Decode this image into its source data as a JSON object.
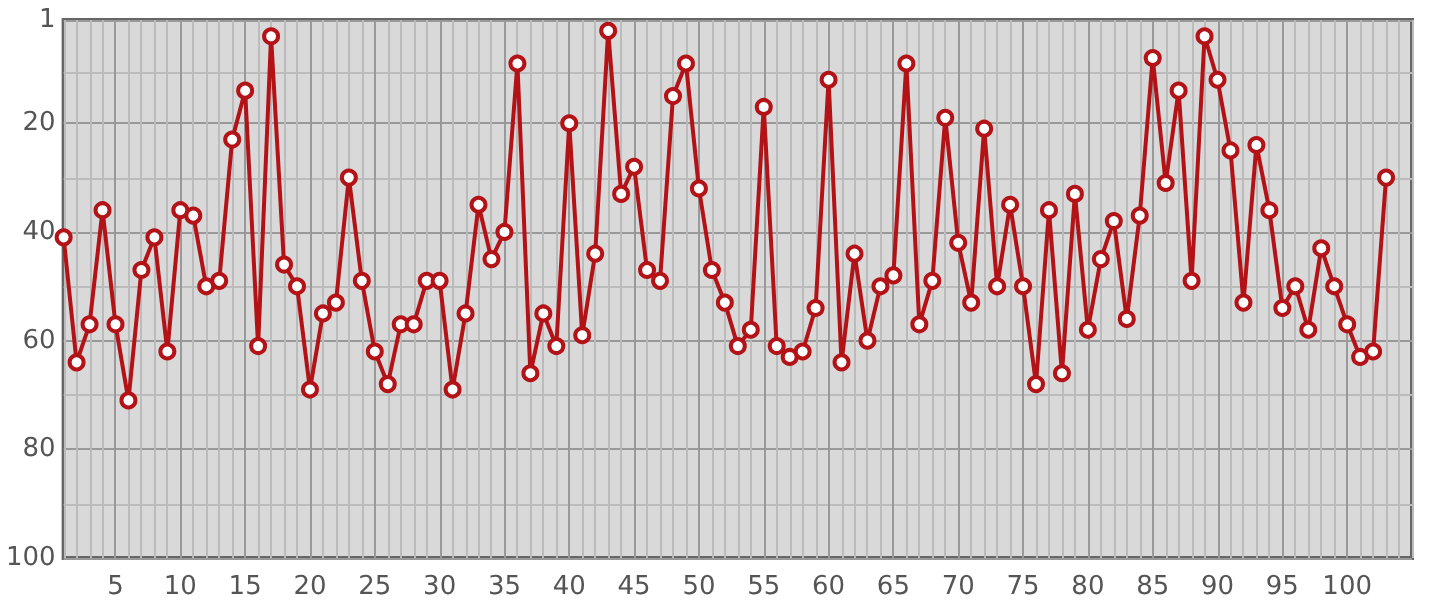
{
  "chart_data": {
    "type": "line",
    "x": [
      1,
      2,
      3,
      4,
      5,
      6,
      7,
      8,
      9,
      10,
      11,
      12,
      13,
      14,
      15,
      16,
      17,
      18,
      19,
      20,
      21,
      22,
      23,
      24,
      25,
      26,
      27,
      28,
      29,
      30,
      31,
      32,
      33,
      34,
      35,
      36,
      37,
      38,
      39,
      40,
      41,
      42,
      43,
      44,
      45,
      46,
      47,
      48,
      49,
      50,
      51,
      52,
      53,
      54,
      55,
      56,
      57,
      58,
      59,
      60,
      61,
      62,
      63,
      64,
      65,
      66,
      67,
      68,
      69,
      70,
      71,
      72,
      73,
      74,
      75,
      76,
      77,
      78,
      79,
      80,
      81,
      82,
      83,
      84,
      85,
      86,
      87,
      88,
      89,
      90,
      91,
      92,
      93,
      94,
      95,
      96,
      97,
      98,
      99,
      100,
      101,
      102,
      103
    ],
    "series": [
      {
        "color": "#b31217",
        "values": [
          41,
          64,
          57,
          36,
          57,
          71,
          47,
          41,
          62,
          36,
          37,
          50,
          49,
          23,
          14,
          61,
          4,
          46,
          50,
          69,
          55,
          53,
          30,
          49,
          62,
          68,
          57,
          57,
          49,
          49,
          69,
          55,
          35,
          45,
          40,
          9,
          66,
          55,
          61,
          20,
          59,
          44,
          3,
          33,
          28,
          47,
          49,
          15,
          9,
          32,
          47,
          53,
          61,
          58,
          17,
          61,
          63,
          62,
          54,
          12,
          64,
          44,
          60,
          50,
          48,
          9,
          57,
          49,
          19,
          42,
          53,
          21,
          50,
          35,
          50,
          68,
          36,
          66,
          33,
          58,
          45,
          38,
          56,
          37,
          8,
          31,
          14,
          49,
          4,
          12,
          25,
          53,
          24,
          36,
          54,
          50,
          58,
          43,
          50,
          57,
          63,
          62,
          30
        ]
      }
    ],
    "xlim": [
      1,
      105
    ],
    "xticks": [
      5,
      10,
      15,
      20,
      25,
      30,
      35,
      40,
      45,
      50,
      55,
      60,
      65,
      70,
      75,
      80,
      85,
      90,
      95,
      100
    ],
    "ylim": [
      100,
      1
    ],
    "yticks": [
      1,
      20,
      40,
      60,
      80,
      100
    ],
    "grid": true,
    "marker": "circle",
    "line_style": "solid"
  }
}
